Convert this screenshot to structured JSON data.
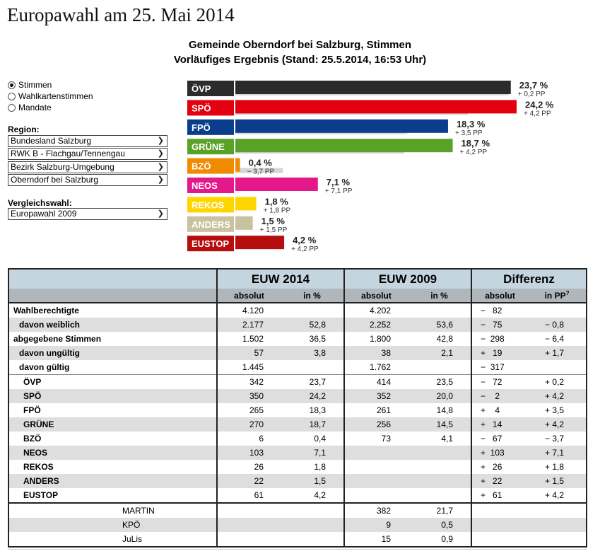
{
  "page": {
    "title": "Europawahl am 25. Mai 2014",
    "subtitle1": "Gemeinde Oberndorf bei Salzburg, Stimmen",
    "subtitle2": "Vorläufiges Ergebnis (Stand: 25.5.2014, 16:53 Uhr)"
  },
  "view_options": {
    "selected": "Stimmen",
    "options": [
      "Stimmen",
      "Wahlkartenstimmen",
      "Mandate"
    ]
  },
  "region": {
    "label": "Region:",
    "selects": [
      "Bundesland Salzburg",
      "RWK B - Flachgau/Tennengau",
      "Bezirk Salzburg-Umgebung",
      "Oberndorf bei Salzburg"
    ]
  },
  "comparison": {
    "label": "Vergleichswahl:",
    "value": "Europawahl 2009"
  },
  "chart_data": {
    "type": "bar",
    "orientation": "horizontal",
    "categories": [
      "ÖVP",
      "SPÖ",
      "FPÖ",
      "GRÜNE",
      "BZÖ",
      "NEOS",
      "REKOS",
      "ANDERS",
      "EUSTOP"
    ],
    "series": [
      {
        "values": [
          23.7,
          24.2,
          18.3,
          18.7,
          0.4,
          7.1,
          1.8,
          1.5,
          4.2
        ]
      },
      {
        "values": [
          23.5,
          20.0,
          14.8,
          14.5,
          4.1,
          0,
          0,
          0,
          0
        ]
      }
    ],
    "value_labels": [
      "23,7 %",
      "24,2 %",
      "18,3 %",
      "18,7 %",
      "0,4 %",
      "7,1 %",
      "1,8 %",
      "1,5 %",
      "4,2 %"
    ],
    "diff_labels": [
      "+ 0,2 PP",
      "+ 4,2 PP",
      "+ 3,5 PP",
      "+ 4,2 PP",
      "− 3,7 PP",
      "+ 7,1 PP",
      "+ 1,8 PP",
      "+ 1,5 PP",
      "+ 4,2 PP"
    ],
    "colors": [
      "#2b2b2b",
      "#e3000f",
      "#0a3e8c",
      "#5aa127",
      "#f08a00",
      "#e4178b",
      "#ffd500",
      "#c8c2a0",
      "#b50e0e"
    ],
    "previous_color": "#d6d6d6",
    "xlim": [
      0,
      24.2
    ]
  },
  "table": {
    "groups": [
      "EUW 2014",
      "EUW 2009",
      "Differenz"
    ],
    "subheaders": [
      "absolut",
      "in %",
      "absolut",
      "in %",
      "absolut",
      "in PP"
    ],
    "subheader_sup": "?",
    "rows": [
      {
        "label": "Wahlberechtigte",
        "a14": "4.120",
        "p14": "",
        "a09": "4.202",
        "p09": "",
        "da": "−   82",
        "dp": ""
      },
      {
        "label": "davon weiblich",
        "a14": "2.177",
        "p14": "52,8",
        "a09": "2.252",
        "p09": "53,6",
        "da": "−   75",
        "dp": "− 0,8"
      },
      {
        "label": "abgegebene Stimmen",
        "a14": "1.502",
        "p14": "36,5",
        "a09": "1.800",
        "p09": "42,8",
        "da": "−  298",
        "dp": "− 6,4"
      },
      {
        "label": "davon ungültig",
        "a14": "57",
        "p14": "3,8",
        "a09": "38",
        "p09": "2,1",
        "da": "+   19",
        "dp": "+ 1,7"
      },
      {
        "label": "davon gültig",
        "a14": "1.445",
        "p14": "",
        "a09": "1.762",
        "p09": "",
        "da": "−  317",
        "dp": ""
      }
    ],
    "party_rows": [
      {
        "label": "ÖVP",
        "a14": "342",
        "p14": "23,7",
        "a09": "414",
        "p09": "23,5",
        "da": "−   72",
        "dp": "+ 0,2"
      },
      {
        "label": "SPÖ",
        "a14": "350",
        "p14": "24,2",
        "a09": "352",
        "p09": "20,0",
        "da": "−    2",
        "dp": "+ 4,2"
      },
      {
        "label": "FPÖ",
        "a14": "265",
        "p14": "18,3",
        "a09": "261",
        "p09": "14,8",
        "da": "+    4",
        "dp": "+ 3,5"
      },
      {
        "label": "GRÜNE",
        "a14": "270",
        "p14": "18,7",
        "a09": "256",
        "p09": "14,5",
        "da": "+   14",
        "dp": "+ 4,2"
      },
      {
        "label": "BZÖ",
        "a14": "6",
        "p14": "0,4",
        "a09": "73",
        "p09": "4,1",
        "da": "−   67",
        "dp": "− 3,7"
      },
      {
        "label": "NEOS",
        "a14": "103",
        "p14": "7,1",
        "a09": "",
        "p09": "",
        "da": "+  103",
        "dp": "+ 7,1"
      },
      {
        "label": "REKOS",
        "a14": "26",
        "p14": "1,8",
        "a09": "",
        "p09": "",
        "da": "+   26",
        "dp": "+ 1,8"
      },
      {
        "label": "ANDERS",
        "a14": "22",
        "p14": "1,5",
        "a09": "",
        "p09": "",
        "da": "+   22",
        "dp": "+ 1,5"
      },
      {
        "label": "EUSTOP",
        "a14": "61",
        "p14": "4,2",
        "a09": "",
        "p09": "",
        "da": "+   61",
        "dp": "+ 4,2"
      }
    ],
    "other_rows": [
      {
        "label": "MARTIN",
        "a14": "",
        "p14": "",
        "a09": "382",
        "p09": "21,7",
        "da": "",
        "dp": ""
      },
      {
        "label": "KPÖ",
        "a14": "",
        "p14": "",
        "a09": "9",
        "p09": "0,5",
        "da": "",
        "dp": ""
      },
      {
        "label": "JuLis",
        "a14": "",
        "p14": "",
        "a09": "15",
        "p09": "0,9",
        "da": "",
        "dp": ""
      }
    ]
  }
}
